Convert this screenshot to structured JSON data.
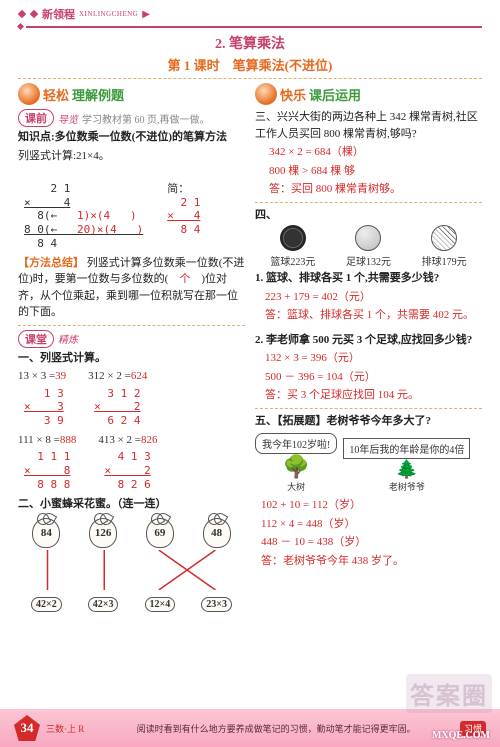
{
  "brand": {
    "name": "新领程",
    "pinyin": "XINLINGCHENG"
  },
  "title": {
    "section": "2. 笔算乘法",
    "lesson": "第 1 课时　笔算乘法(不进位)"
  },
  "left_badge": {
    "orange": "轻松",
    "green": "理解例题"
  },
  "right_badge": {
    "orange": "快乐",
    "green": "课后运用"
  },
  "preview": {
    "label": "课前",
    "sublabel": "导览",
    "note": "学习教材第 60 页,再做一做。"
  },
  "knowledge": {
    "title": "知识点:多位数乘一位数(不进位)的笔算方法",
    "task": "列竖式计算:21×4。"
  },
  "main_calc": {
    "line1": "    2 1",
    "line2": "×     4",
    "annotation_left_a": "8(←   ",
    "annotation_left_b": "1)×(4   )",
    "annotation_left_c": "8 0(←   ",
    "annotation_left_d": "20)×(4   )",
    "annotation_left_e": "8 4",
    "brief_label": "简：",
    "brief1": "  2 1",
    "brief2": "×   4",
    "brief3": "  8 4"
  },
  "method": {
    "label": "【方法总结】",
    "text": "列竖式计算多位数乘一位数（不进位）时，要第一位数与多位数的（　）位对齐，从个位乘起，乘到哪一位积就写在那一位的下面。",
    "fill": "个"
  },
  "class_label": {
    "label": "课堂",
    "sublabel": "精炼"
  },
  "q1": {
    "title": "一、列竖式计算。",
    "items": [
      {
        "expr": "13 × 3 =",
        "ans": "39",
        "v1": "   1 3",
        "v2": "×    3",
        "v3": "   3 9"
      },
      {
        "expr": "312 × 2 =",
        "ans": "624",
        "v1": "  3 1 2",
        "v2": "×     2",
        "v3": "  6 2 4"
      },
      {
        "expr": "111 × 8 =",
        "ans": "888",
        "v1": "  1 1 1",
        "v2": "×     8",
        "v3": "  8 8 8"
      },
      {
        "expr": "413 × 2 =",
        "ans": "826",
        "v1": "  4 1 3",
        "v2": "×     2",
        "v3": "  8 2 6"
      }
    ]
  },
  "q2": {
    "title": "二、小蜜蜂采花蜜。（连一连）",
    "flowers": [
      "84",
      "126",
      "69",
      "48"
    ],
    "bees": [
      "42×2",
      "42×3",
      "12×4",
      "23×3"
    ],
    "lines": [
      {
        "from": 0,
        "to": 0,
        "color": "#d42a2a"
      },
      {
        "from": 1,
        "to": 1,
        "color": "#d42a2a"
      },
      {
        "from": 2,
        "to": 3,
        "color": "#d42a2a"
      },
      {
        "from": 3,
        "to": 2,
        "color": "#d42a2a"
      }
    ]
  },
  "q3": {
    "title": "三、兴兴大街的两边各种上 342 棵常青树,社区工作人员买回 800 棵常青树,够吗?",
    "work": [
      "342 × 2 = 684（棵）",
      "800 棵 > 684 棵  够",
      "答：买回 800 棵常青树够。"
    ]
  },
  "q4": {
    "title": "四、",
    "balls": [
      {
        "name": "篮球223元",
        "type": "basketball"
      },
      {
        "name": "足球132元",
        "type": "soccer"
      },
      {
        "name": "排球179元",
        "type": "volleyball"
      }
    ],
    "p1": {
      "q": "1. 篮球、排球各买 1 个,共需要多少钱?",
      "work": [
        "223 + 179 = 402（元）",
        "答：篮球、排球各买 1 个，共需要 402 元。"
      ]
    },
    "p2": {
      "q": "2. 李老师拿 500 元买 3 个足球,应找回多少钱?",
      "work": [
        "132 × 3 = 396（元）",
        "500 － 396 = 104（元）",
        "答：买 3 个足球应找回 104 元。"
      ]
    }
  },
  "q5": {
    "title": "五、【拓展题】老树爷爷今年多大了?",
    "speech1": "我今年102岁啦!",
    "label_big": "大树",
    "speech2": "10年后我的年龄是你的4倍",
    "label_old": "老树爷爷",
    "work": [
      "102 + 10 = 112（岁）",
      "112 × 4 = 448（岁）",
      "448 － 10 = 438（岁）",
      "答：老树爷爷今年 438 岁了。"
    ]
  },
  "footer": {
    "page": "34",
    "grade": "三数·上 R",
    "tip": "阅读时看到有什么地方要养成做笔记的习惯，勤动笔才能记得更牢固。",
    "right": "习惯"
  },
  "watermark": "答案圈",
  "site": "MXQE.COM",
  "colors": {
    "brand": "#c8416b",
    "orange": "#e56a1f",
    "red": "#d42a2a",
    "green": "#3c9a3c"
  }
}
